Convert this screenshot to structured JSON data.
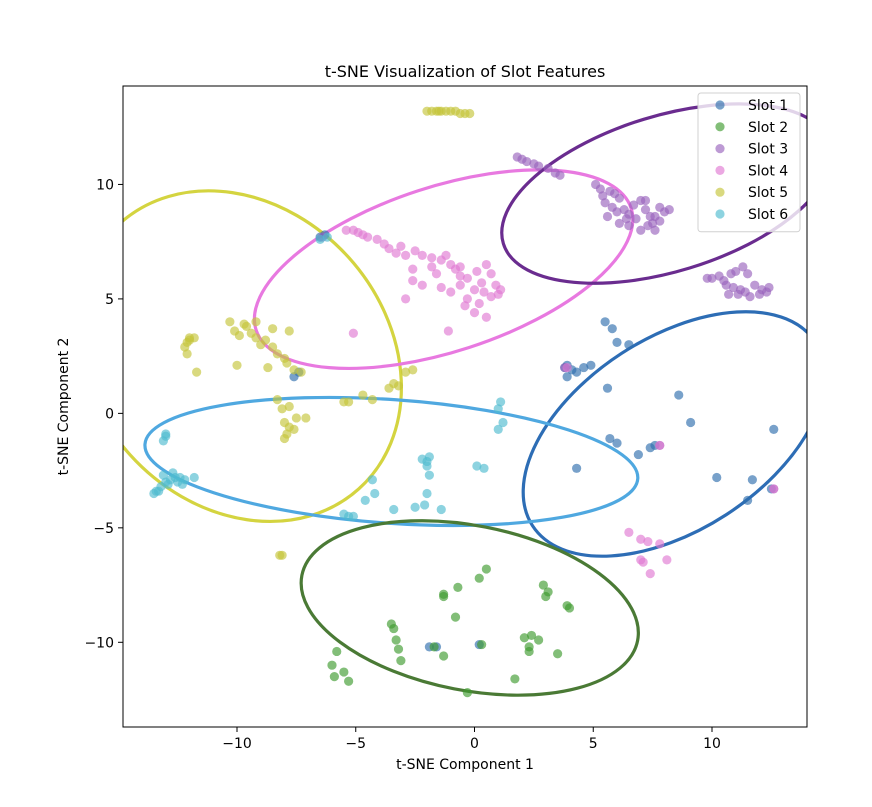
{
  "chart_data": {
    "type": "scatter",
    "title": "t-SNE Visualization of Slot Features",
    "xlabel": "t-SNE Component 1",
    "ylabel": "t-SNE Component 2",
    "xlim": [
      -14.8,
      14.0
    ],
    "ylim": [
      -13.7,
      14.3
    ],
    "xticks": [
      -10,
      -5,
      0,
      5,
      10
    ],
    "xtick_labels": [
      "−10",
      "−5",
      "0",
      "5",
      "10"
    ],
    "yticks": [
      -10,
      -5,
      0,
      5,
      10
    ],
    "ytick_labels": [
      "−10",
      "−5",
      "0",
      "5",
      "10"
    ],
    "grid": false,
    "legend_position": "top-right",
    "point_alpha": 0.65,
    "series": [
      {
        "name": "Slot 1",
        "color": "#2f6ead",
        "points": [
          [
            -6.5,
            7.7
          ],
          [
            -6.3,
            7.8
          ],
          [
            3.8,
            2.0
          ],
          [
            3.9,
            2.1
          ],
          [
            4.1,
            1.9
          ],
          [
            4.3,
            1.8
          ],
          [
            4.6,
            2.0
          ],
          [
            4.9,
            2.1
          ],
          [
            3.9,
            1.6
          ],
          [
            5.5,
            4.0
          ],
          [
            5.8,
            3.7
          ],
          [
            6.0,
            3.1
          ],
          [
            6.5,
            3.0
          ],
          [
            5.6,
            1.1
          ],
          [
            5.7,
            -1.1
          ],
          [
            6.0,
            -1.3
          ],
          [
            6.9,
            -1.8
          ],
          [
            7.4,
            -1.5
          ],
          [
            7.6,
            -1.4
          ],
          [
            8.6,
            0.8
          ],
          [
            9.1,
            -0.4
          ],
          [
            10.2,
            -2.8
          ],
          [
            11.5,
            -3.8
          ],
          [
            11.7,
            -2.9
          ],
          [
            12.5,
            -3.3
          ],
          [
            12.6,
            -0.7
          ],
          [
            -7.6,
            1.6
          ],
          [
            -7.4,
            1.8
          ],
          [
            -1.9,
            -10.2
          ],
          [
            0.2,
            -10.1
          ],
          [
            4.3,
            -2.4
          ],
          [
            -1.6,
            -10.2
          ]
        ]
      },
      {
        "name": "Slot 2",
        "color": "#3f9b30",
        "points": [
          [
            -6.0,
            -11.0
          ],
          [
            -5.8,
            -10.4
          ],
          [
            -5.9,
            -11.5
          ],
          [
            -5.5,
            -11.3
          ],
          [
            -5.3,
            -11.7
          ],
          [
            -3.5,
            -9.2
          ],
          [
            -3.4,
            -9.4
          ],
          [
            -3.2,
            -10.3
          ],
          [
            -3.1,
            -10.8
          ],
          [
            -3.3,
            -9.9
          ],
          [
            -1.7,
            -10.2
          ],
          [
            -1.3,
            -10.6
          ],
          [
            -1.3,
            -8.0
          ],
          [
            -1.3,
            -7.9
          ],
          [
            -0.8,
            -8.9
          ],
          [
            -0.7,
            -7.6
          ],
          [
            -0.3,
            -12.2
          ],
          [
            0.2,
            -7.2
          ],
          [
            0.5,
            -6.8
          ],
          [
            0.3,
            -10.1
          ],
          [
            1.7,
            -11.6
          ],
          [
            2.1,
            -9.8
          ],
          [
            2.3,
            -10.4
          ],
          [
            2.4,
            -9.7
          ],
          [
            2.7,
            -9.9
          ],
          [
            2.9,
            -7.5
          ],
          [
            3.1,
            -7.8
          ],
          [
            3.0,
            -8.0
          ],
          [
            3.5,
            -10.5
          ],
          [
            3.9,
            -8.4
          ],
          [
            4.0,
            -8.5
          ],
          [
            2.3,
            -10.2
          ]
        ]
      },
      {
        "name": "Slot 3",
        "color": "#9a64bd",
        "points": [
          [
            1.8,
            11.2
          ],
          [
            2.0,
            11.1
          ],
          [
            2.2,
            11.0
          ],
          [
            2.5,
            10.9
          ],
          [
            2.7,
            10.8
          ],
          [
            3.1,
            10.7
          ],
          [
            3.4,
            10.5
          ],
          [
            3.6,
            10.4
          ],
          [
            5.1,
            10.0
          ],
          [
            5.3,
            9.8
          ],
          [
            5.4,
            9.5
          ],
          [
            5.7,
            9.7
          ],
          [
            5.9,
            9.6
          ],
          [
            6.1,
            9.4
          ],
          [
            5.5,
            9.2
          ],
          [
            5.8,
            9.0
          ],
          [
            6.0,
            8.8
          ],
          [
            6.3,
            8.9
          ],
          [
            6.5,
            8.7
          ],
          [
            5.6,
            8.6
          ],
          [
            6.1,
            8.3
          ],
          [
            6.4,
            8.5
          ],
          [
            6.7,
            9.1
          ],
          [
            7.0,
            9.3
          ],
          [
            7.2,
            8.9
          ],
          [
            6.8,
            8.5
          ],
          [
            7.4,
            8.6
          ],
          [
            7.0,
            8.0
          ],
          [
            7.3,
            8.2
          ],
          [
            7.6,
            8.6
          ],
          [
            7.8,
            9.0
          ],
          [
            8.0,
            8.8
          ],
          [
            7.5,
            8.3
          ],
          [
            7.8,
            8.4
          ],
          [
            8.2,
            8.9
          ],
          [
            7.2,
            9.3
          ],
          [
            6.5,
            8.2
          ],
          [
            7.6,
            8.0
          ],
          [
            10.0,
            5.9
          ],
          [
            10.3,
            6.0
          ],
          [
            10.5,
            5.8
          ],
          [
            10.8,
            6.1
          ],
          [
            11.0,
            6.2
          ],
          [
            11.3,
            6.4
          ],
          [
            11.5,
            6.1
          ],
          [
            10.6,
            5.6
          ],
          [
            10.9,
            5.5
          ],
          [
            11.2,
            5.4
          ],
          [
            10.7,
            5.2
          ],
          [
            11.1,
            5.2
          ],
          [
            11.4,
            5.3
          ],
          [
            11.8,
            5.6
          ],
          [
            12.1,
            5.4
          ],
          [
            12.4,
            5.5
          ],
          [
            11.6,
            5.1
          ],
          [
            12.0,
            5.2
          ],
          [
            12.3,
            5.3
          ],
          [
            3.8,
            2.0
          ],
          [
            7.8,
            -1.4
          ],
          [
            12.6,
            -3.3
          ],
          [
            -6.4,
            7.7
          ],
          [
            9.8,
            5.9
          ]
        ]
      },
      {
        "name": "Slot 4",
        "color": "#e07ad2",
        "points": [
          [
            -5.4,
            8.0
          ],
          [
            -5.1,
            8.0
          ],
          [
            -4.9,
            7.9
          ],
          [
            -4.7,
            7.8
          ],
          [
            -4.5,
            7.7
          ],
          [
            -4.1,
            7.6
          ],
          [
            -3.8,
            7.4
          ],
          [
            -3.6,
            7.2
          ],
          [
            -3.3,
            7.0
          ],
          [
            -2.9,
            6.9
          ],
          [
            -3.1,
            7.3
          ],
          [
            -2.5,
            7.1
          ],
          [
            -2.2,
            6.9
          ],
          [
            -1.8,
            6.8
          ],
          [
            -1.4,
            6.7
          ],
          [
            -1.0,
            6.5
          ],
          [
            -0.8,
            6.3
          ],
          [
            -0.6,
            6.0
          ],
          [
            -0.3,
            5.9
          ],
          [
            0.1,
            6.2
          ],
          [
            0.3,
            5.7
          ],
          [
            0.5,
            6.5
          ],
          [
            0.7,
            6.1
          ],
          [
            0.9,
            5.6
          ],
          [
            1.1,
            5.4
          ],
          [
            -2.6,
            5.8
          ],
          [
            -2.2,
            5.6
          ],
          [
            -1.8,
            6.4
          ],
          [
            -1.6,
            6.1
          ],
          [
            -1.4,
            5.5
          ],
          [
            -1.0,
            5.3
          ],
          [
            -0.6,
            5.6
          ],
          [
            -0.3,
            5.0
          ],
          [
            0.0,
            5.4
          ],
          [
            0.2,
            4.8
          ],
          [
            0.4,
            5.3
          ],
          [
            0.7,
            5.1
          ],
          [
            -0.4,
            4.7
          ],
          [
            0.0,
            4.4
          ],
          [
            0.5,
            4.2
          ],
          [
            -2.9,
            5.0
          ],
          [
            -1.1,
            3.6
          ],
          [
            -5.1,
            3.5
          ],
          [
            -2.6,
            6.3
          ],
          [
            -0.6,
            6.4
          ],
          [
            1.0,
            5.2
          ],
          [
            6.5,
            -5.2
          ],
          [
            7.0,
            -5.5
          ],
          [
            7.3,
            -5.6
          ],
          [
            7.1,
            -6.5
          ],
          [
            7.4,
            -7.0
          ],
          [
            7.8,
            -5.7
          ],
          [
            8.1,
            -6.4
          ],
          [
            7.0,
            -6.4
          ],
          [
            7.8,
            -1.4
          ],
          [
            12.6,
            -3.3
          ],
          [
            3.9,
            2.0
          ],
          [
            -1.2,
            6.9
          ]
        ]
      },
      {
        "name": "Slot 5",
        "color": "#c4c43a",
        "points": [
          [
            -2.0,
            13.2
          ],
          [
            -1.8,
            13.2
          ],
          [
            -1.6,
            13.2
          ],
          [
            -1.4,
            13.2
          ],
          [
            -1.2,
            13.2
          ],
          [
            -1.0,
            13.2
          ],
          [
            -0.8,
            13.2
          ],
          [
            -0.6,
            13.1
          ],
          [
            -0.4,
            13.1
          ],
          [
            -0.2,
            13.1
          ],
          [
            -1.5,
            13.2
          ],
          [
            -12.0,
            3.3
          ],
          [
            -12.1,
            3.1
          ],
          [
            -12.2,
            2.9
          ],
          [
            -12.1,
            2.6
          ],
          [
            -11.8,
            3.3
          ],
          [
            -11.7,
            1.8
          ],
          [
            -10.3,
            4.0
          ],
          [
            -10.1,
            3.6
          ],
          [
            -9.9,
            3.4
          ],
          [
            -9.6,
            3.8
          ],
          [
            -9.4,
            3.5
          ],
          [
            -9.2,
            3.3
          ],
          [
            -9.0,
            3.0
          ],
          [
            -8.8,
            3.2
          ],
          [
            -8.5,
            2.9
          ],
          [
            -8.3,
            2.6
          ],
          [
            -8.0,
            2.4
          ],
          [
            -7.9,
            2.2
          ],
          [
            -7.6,
            1.9
          ],
          [
            -7.3,
            1.8
          ],
          [
            -7.8,
            3.6
          ],
          [
            -8.5,
            3.7
          ],
          [
            -9.7,
            3.9
          ],
          [
            -10.0,
            2.1
          ],
          [
            -8.7,
            2.0
          ],
          [
            -9.2,
            4.0
          ],
          [
            -8.3,
            0.6
          ],
          [
            -8.1,
            0.2
          ],
          [
            -7.8,
            0.3
          ],
          [
            -8.0,
            -0.4
          ],
          [
            -7.9,
            -0.9
          ],
          [
            -8.0,
            -1.1
          ],
          [
            -7.8,
            -0.6
          ],
          [
            -7.5,
            -0.2
          ],
          [
            -7.6,
            -0.7
          ],
          [
            -7.1,
            -0.2
          ],
          [
            -5.5,
            0.5
          ],
          [
            -5.3,
            0.5
          ],
          [
            -4.7,
            0.8
          ],
          [
            -4.3,
            0.6
          ],
          [
            -3.6,
            1.1
          ],
          [
            -3.4,
            1.3
          ],
          [
            -3.2,
            1.2
          ],
          [
            -2.9,
            1.8
          ],
          [
            -2.6,
            1.9
          ],
          [
            -8.2,
            -6.2
          ],
          [
            -8.1,
            -6.2
          ],
          [
            -12.0,
            3.2
          ]
        ]
      },
      {
        "name": "Slot 6",
        "color": "#50bccf",
        "points": [
          [
            -13.5,
            -3.5
          ],
          [
            -13.3,
            -3.4
          ],
          [
            -13.2,
            -3.2
          ],
          [
            -13.0,
            -3.0
          ],
          [
            -12.8,
            -2.9
          ],
          [
            -12.6,
            -2.8
          ],
          [
            -12.4,
            -2.8
          ],
          [
            -12.2,
            -2.9
          ],
          [
            -11.8,
            -2.8
          ],
          [
            -12.9,
            -3.1
          ],
          [
            -12.7,
            -2.6
          ],
          [
            -13.1,
            -2.7
          ],
          [
            -12.5,
            -3.0
          ],
          [
            -12.3,
            -3.1
          ],
          [
            -13.0,
            -0.9
          ],
          [
            -13.1,
            -1.2
          ],
          [
            -13.0,
            -1.0
          ],
          [
            -5.5,
            -4.4
          ],
          [
            -5.3,
            -4.5
          ],
          [
            -5.1,
            -4.5
          ],
          [
            -4.6,
            -3.8
          ],
          [
            -4.2,
            -3.5
          ],
          [
            -4.3,
            -2.9
          ],
          [
            -3.4,
            -4.2
          ],
          [
            -2.5,
            -4.1
          ],
          [
            -2.0,
            -3.5
          ],
          [
            -2.1,
            -4.0
          ],
          [
            -1.9,
            -2.7
          ],
          [
            -2.0,
            -2.3
          ],
          [
            -2.2,
            -2.0
          ],
          [
            -2.0,
            -2.1
          ],
          [
            -1.9,
            -1.9
          ],
          [
            -1.4,
            -4.2
          ],
          [
            0.1,
            -2.3
          ],
          [
            0.4,
            -2.4
          ],
          [
            1.0,
            -0.7
          ],
          [
            1.2,
            -0.4
          ],
          [
            1.0,
            0.2
          ],
          [
            1.1,
            0.5
          ],
          [
            -6.2,
            7.7
          ],
          [
            -6.5,
            7.6
          ],
          [
            -13.4,
            -3.4
          ]
        ]
      }
    ],
    "ellipses": [
      {
        "cx": -9.9,
        "cy": 2.5,
        "rx": 6.2,
        "ry": 7.8,
        "angle": -42,
        "color": "#d4d440"
      },
      {
        "cx": -1.3,
        "cy": 6.3,
        "rx": 8.3,
        "ry": 3.6,
        "angle": -18,
        "color": "#e879e0"
      },
      {
        "cx": 8.1,
        "cy": 9.6,
        "rx": 7.2,
        "ry": 3.4,
        "angle": -17,
        "color": "#6a2c8f"
      },
      {
        "cx": 8.4,
        "cy": -0.9,
        "rx": 7.1,
        "ry": 4.2,
        "angle": -33,
        "color": "#2d6db5"
      },
      {
        "cx": -3.5,
        "cy": -2.1,
        "rx": 10.4,
        "ry": 2.7,
        "angle": 4,
        "color": "#4fa8e0"
      },
      {
        "cx": -0.2,
        "cy": -8.5,
        "rx": 7.2,
        "ry": 3.6,
        "angle": 11,
        "color": "#4a7a35"
      }
    ]
  }
}
